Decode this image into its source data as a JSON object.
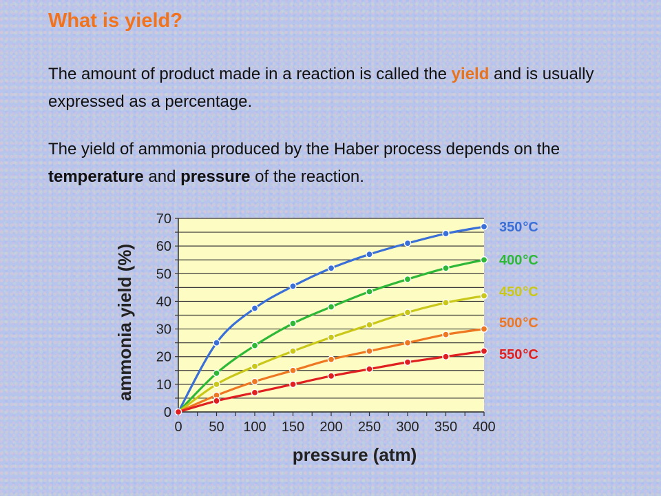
{
  "slide": {
    "title": "What is yield?",
    "para1": {
      "before": "The amount of product made in a reaction is called the",
      "highlight": "yield",
      "after": "and is usually expressed as a percentage."
    },
    "para2": {
      "before": "The yield of ammonia produced by the Haber process depends on the",
      "bold1": "temperature",
      "mid": "and",
      "bold2": "pressure",
      "after": "of the reaction."
    }
  },
  "chart_data": {
    "type": "line",
    "title": "",
    "xlabel": "pressure (atm)",
    "ylabel": "ammonia yield (%)",
    "x": [
      0,
      50,
      100,
      150,
      200,
      250,
      300,
      350,
      400
    ],
    "xlim": [
      0,
      400
    ],
    "ylim": [
      0,
      70
    ],
    "xticks": [
      "0",
      "50",
      "100",
      "150",
      "200",
      "250",
      "300",
      "350",
      "400"
    ],
    "yticks": [
      "0",
      "10",
      "20",
      "30",
      "40",
      "50",
      "60",
      "70"
    ],
    "grid": true,
    "legend": "right",
    "series": [
      {
        "name": "350",
        "unit": "°C",
        "color": "#3a6fd8",
        "values": [
          0,
          25,
          37.5,
          45.5,
          52,
          57,
          61,
          64.5,
          67
        ]
      },
      {
        "name": "400",
        "unit": "°C",
        "color": "#2fb838",
        "values": [
          0,
          14,
          24,
          32,
          38,
          43.5,
          48,
          52,
          55
        ]
      },
      {
        "name": "450",
        "unit": "°C",
        "color": "#c9c81a",
        "values": [
          0,
          10,
          16.5,
          22,
          27,
          31.5,
          36,
          39.5,
          42
        ]
      },
      {
        "name": "500",
        "unit": "°C",
        "color": "#ee7722",
        "values": [
          0,
          6,
          11,
          15,
          19,
          22,
          25,
          28,
          30
        ]
      },
      {
        "name": "550",
        "unit": "°C",
        "color": "#e02020",
        "values": [
          0,
          4,
          7,
          10,
          13,
          15.5,
          18,
          20,
          22
        ]
      }
    ]
  }
}
